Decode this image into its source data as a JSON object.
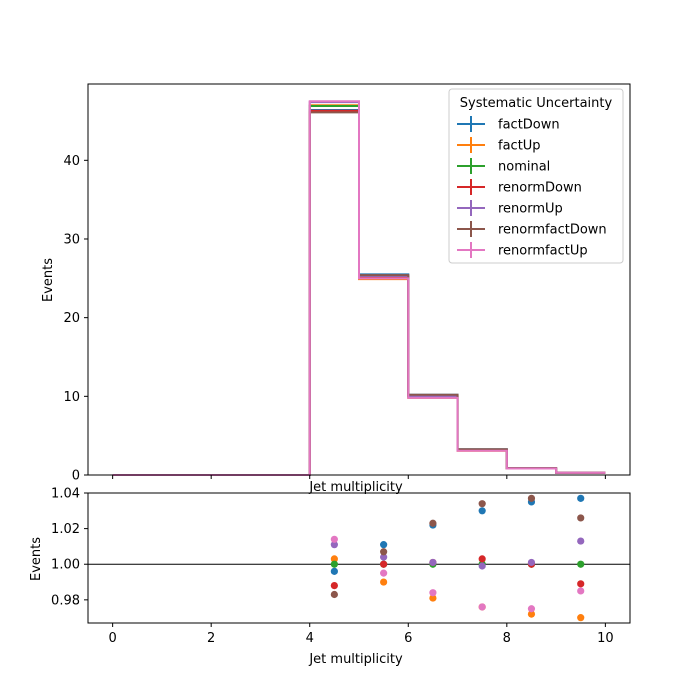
{
  "chart_data": [
    {
      "type": "step",
      "xlabel": "Jet multiplicity",
      "ylabel": "Events",
      "xlim": [
        -0.5,
        10.5
      ],
      "ylim": [
        0,
        49.7
      ],
      "xticks": [
        0,
        2,
        4,
        6,
        8,
        10
      ],
      "xtick_labels_shown": false,
      "yticks": [
        0,
        10,
        20,
        30,
        40
      ],
      "bin_edges": [
        0,
        1,
        2,
        3,
        4,
        5,
        6,
        7,
        8,
        9,
        10
      ],
      "legend": {
        "title": "Systematic Uncertainty",
        "location": "upper right"
      },
      "series": [
        {
          "name": "factDown",
          "color": "#1f77b4",
          "values": [
            0,
            0,
            0,
            0,
            46.4,
            25.5,
            10.2,
            3.28,
            0.88,
            0.3
          ]
        },
        {
          "name": "factUp",
          "color": "#ff7f0e",
          "values": [
            0,
            0,
            0,
            0,
            47.0,
            24.9,
            9.8,
            3.08,
            0.83,
            0.28
          ]
        },
        {
          "name": "nominal",
          "color": "#2ca02c",
          "values": [
            0,
            0,
            0,
            0,
            46.9,
            25.2,
            10.0,
            3.16,
            0.85,
            0.29
          ]
        },
        {
          "name": "renormDown",
          "color": "#d62728",
          "values": [
            0,
            0,
            0,
            0,
            46.3,
            25.2,
            10.0,
            3.17,
            0.85,
            0.28
          ]
        },
        {
          "name": "renormUp",
          "color": "#9467bd",
          "values": [
            0,
            0,
            0,
            0,
            47.4,
            25.3,
            10.0,
            3.16,
            0.85,
            0.29
          ]
        },
        {
          "name": "renormfactDown",
          "color": "#8c564b",
          "values": [
            0,
            0,
            0,
            0,
            46.1,
            25.4,
            10.2,
            3.27,
            0.88,
            0.29
          ]
        },
        {
          "name": "renormfactUp",
          "color": "#e377c2",
          "values": [
            0,
            0,
            0,
            0,
            47.5,
            25.0,
            9.8,
            3.08,
            0.83,
            0.28
          ]
        }
      ]
    },
    {
      "type": "scatter",
      "xlabel": "Jet multiplicity",
      "ylabel": "Events",
      "xlim": [
        -0.5,
        10.5
      ],
      "ylim": [
        0.967,
        1.04
      ],
      "xticks": [
        0,
        2,
        4,
        6,
        8,
        10
      ],
      "yticks": [
        0.98,
        1.0,
        1.02,
        1.04
      ],
      "ytick_labels": [
        "0.98",
        "1.00",
        "1.02",
        "1.04"
      ],
      "reference_line": 1.0,
      "x": [
        4.5,
        5.5,
        6.5,
        7.5,
        8.5,
        9.5
      ],
      "series": [
        {
          "name": "factDown",
          "color": "#1f77b4",
          "values": [
            0.996,
            1.011,
            1.022,
            1.03,
            1.035,
            1.037
          ]
        },
        {
          "name": "factUp",
          "color": "#ff7f0e",
          "values": [
            1.003,
            0.99,
            0.981,
            0.976,
            0.972,
            0.97
          ]
        },
        {
          "name": "nominal",
          "color": "#2ca02c",
          "values": [
            1.0,
            1.0,
            1.0,
            1.0,
            1.0,
            1.0
          ]
        },
        {
          "name": "renormDown",
          "color": "#d62728",
          "values": [
            0.988,
            1.0,
            1.001,
            1.003,
            1.0,
            0.989
          ]
        },
        {
          "name": "renormUp",
          "color": "#9467bd",
          "values": [
            1.011,
            1.004,
            1.001,
            0.999,
            1.001,
            1.013
          ]
        },
        {
          "name": "renormfactDown",
          "color": "#8c564b",
          "values": [
            0.983,
            1.007,
            1.023,
            1.034,
            1.037,
            1.026
          ]
        },
        {
          "name": "renormfactUp",
          "color": "#e377c2",
          "values": [
            1.014,
            0.995,
            0.984,
            0.976,
            0.975,
            0.985
          ]
        }
      ]
    }
  ]
}
